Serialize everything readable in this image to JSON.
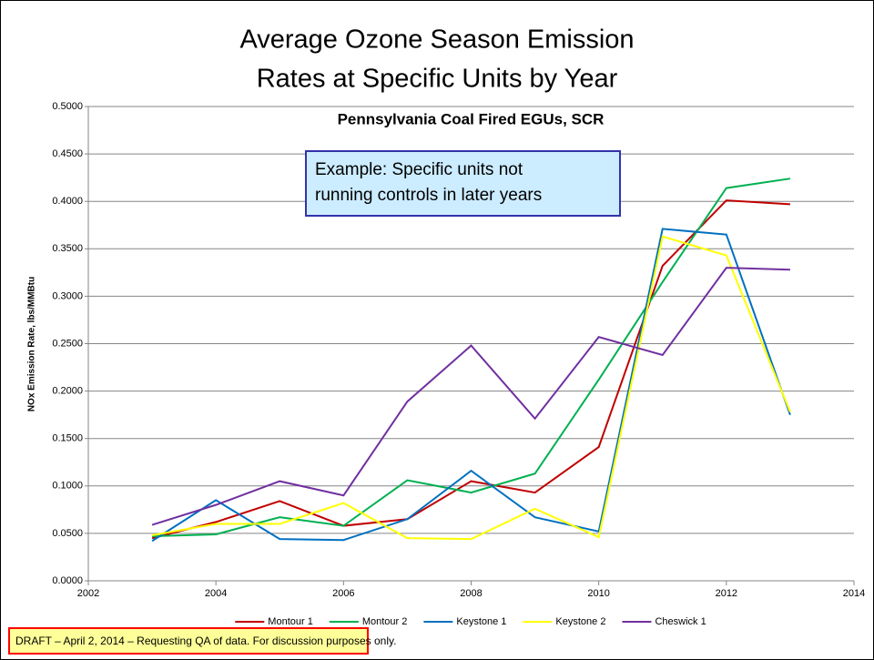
{
  "chart_data": {
    "type": "line",
    "title_lines": [
      "Average Ozone Season Emission",
      "Rates at Specific Units by Year"
    ],
    "subtitle": "Pennsylvania Coal Fired EGUs, SCR",
    "annotation_lines": [
      "Example: Specific units not",
      "running controls in later years"
    ],
    "y_label": "NOx Emission Rate, lbs/MMBtu",
    "x": [
      2003,
      2004,
      2005,
      2006,
      2007,
      2008,
      2009,
      2010,
      2011,
      2012,
      2013
    ],
    "series": [
      {
        "name": "Montour 1",
        "color": "#c00000",
        "values": [
          0.045,
          0.062,
          0.084,
          0.058,
          0.065,
          0.105,
          0.093,
          0.141,
          0.332,
          0.401,
          0.397
        ]
      },
      {
        "name": "Montour 2",
        "color": "#00b050",
        "values": [
          0.047,
          0.049,
          0.067,
          0.058,
          0.106,
          0.093,
          0.113,
          0.212,
          0.315,
          0.414,
          0.424
        ]
      },
      {
        "name": "Keystone 1",
        "color": "#0070c0",
        "values": [
          0.042,
          0.085,
          0.044,
          0.043,
          0.065,
          0.116,
          0.067,
          0.052,
          0.371,
          0.365,
          0.175
        ]
      },
      {
        "name": "Keystone 2",
        "color": "#ffff00",
        "values": [
          0.048,
          0.06,
          0.06,
          0.082,
          0.045,
          0.044,
          0.076,
          0.046,
          0.363,
          0.343,
          0.178
        ]
      },
      {
        "name": "Cheswick 1",
        "color": "#7030a0",
        "values": [
          0.059,
          0.08,
          0.105,
          0.09,
          0.189,
          0.248,
          0.171,
          0.257,
          0.238,
          0.33,
          0.328
        ]
      }
    ],
    "xlim": [
      2002,
      2014
    ],
    "xticks": [
      2002,
      2004,
      2006,
      2008,
      2010,
      2012,
      2014
    ],
    "ylim": [
      0,
      0.5
    ],
    "yticks": [
      {
        "value": 0,
        "label": "0.0000"
      },
      {
        "value": 0.05,
        "label": "0.0500"
      },
      {
        "value": 0.1,
        "label": "0.1000"
      },
      {
        "value": 0.15,
        "label": "0.1500"
      },
      {
        "value": 0.2,
        "label": "0.2000"
      },
      {
        "value": 0.25,
        "label": "0.2500"
      },
      {
        "value": 0.3,
        "label": "0.3000"
      },
      {
        "value": 0.35,
        "label": "0.3500"
      },
      {
        "value": 0.4,
        "label": "0.4000"
      },
      {
        "value": 0.45,
        "label": "0.4500"
      },
      {
        "value": 0.5,
        "label": "0.5000"
      }
    ],
    "grid": true,
    "legend": "bottom"
  },
  "footer": "DRAFT – April 2, 2014 – Requesting QA of data.  For discussion purposes only."
}
